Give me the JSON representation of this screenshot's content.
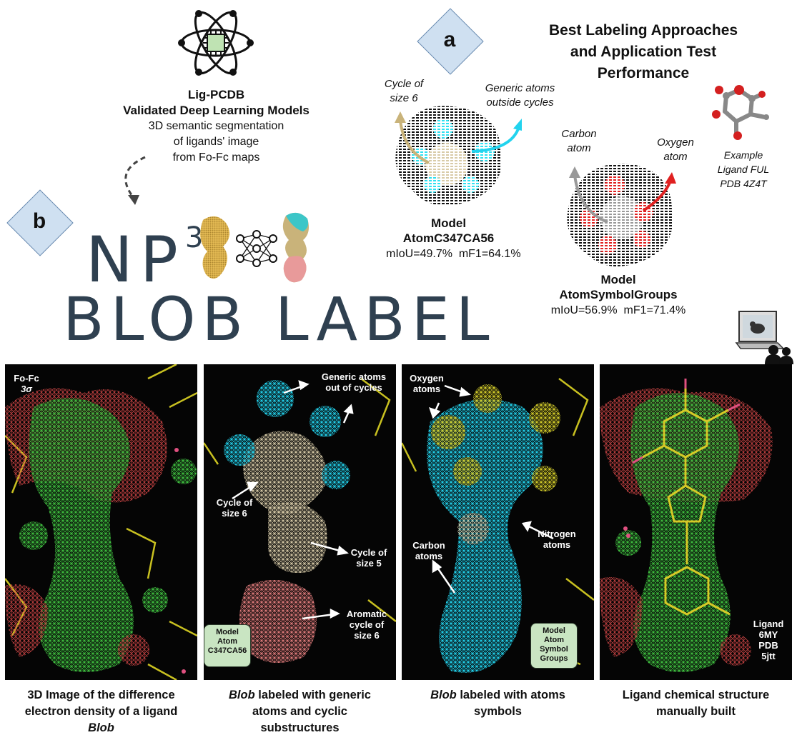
{
  "top_left": {
    "title": "Lig-PCDB",
    "subtitle": "Validated Deep Learning Models",
    "desc_line1": "3D semantic segmentation",
    "desc_line2": "of ligands' image",
    "desc_line3": "from Fo-Fc maps"
  },
  "badge_a": "a",
  "badge_b": "b",
  "logo": {
    "line1": "NP",
    "sup": "3",
    "line2": "BLOB LABEL"
  },
  "section_a": {
    "title_line1": "Best Labeling Approaches",
    "title_line2": "and Application Test",
    "title_line3": "Performance",
    "model1": {
      "label_cycle_line1": "Cycle of",
      "label_cycle_line2": "size 6",
      "label_generic_line1": "Generic atoms",
      "label_generic_line2": "outside cycles",
      "name_line1": "Model",
      "name_line2": "AtomC347CA56",
      "metrics": "mIoU=49.7%  mF1=64.1%"
    },
    "model2": {
      "label_carbon_line1": "Carbon",
      "label_carbon_line2": "atom",
      "label_oxygen_line1": "Oxygen",
      "label_oxygen_line2": "atom",
      "name_line1": "Model",
      "name_line2": "AtomSymbolGroups",
      "metrics": "mIoU=56.9%  mF1=71.4%"
    },
    "example": {
      "line1": "Example",
      "line2": "Ligand FUL",
      "line3": "PDB 4Z4T"
    }
  },
  "panels": {
    "p1": {
      "label_line1": "Fo-Fc",
      "label_line2": "3σ"
    },
    "p2": {
      "generic_line1": "Generic atoms",
      "generic_line2": "out of cycles",
      "cycle6_line1": "Cycle of",
      "cycle6_line2": "size 6",
      "cycle5_line1": "Cycle of",
      "cycle5_line2": "size 5",
      "arom_line1": "Aromatic",
      "arom_line2": "cycle of",
      "arom_line3": "size 6",
      "chip_line1": "Model",
      "chip_line2": "Atom",
      "chip_line3": "C347CA56"
    },
    "p3": {
      "oxygen_line1": "Oxygen",
      "oxygen_line2": "atoms",
      "nitrogen_line1": "Nitrogen",
      "nitrogen_line2": "atoms",
      "carbon_line1": "Carbon",
      "carbon_line2": "atoms",
      "chip_line1": "Model",
      "chip_line2": "Atom",
      "chip_line3": "Symbol",
      "chip_line4": "Groups"
    },
    "p4": {
      "line1": "Ligand",
      "line2": "6MY",
      "line3": "PDB",
      "line4": "5jtt"
    }
  },
  "captions": {
    "c1_line1": "3D Image of the difference",
    "c1_line2": "electron density of a ligand",
    "c1_line3": "Blob",
    "c2_line1_em": "Blob",
    "c2_line1_rest": " labeled with generic",
    "c2_line2": "atoms and cyclic",
    "c2_line3": "substructures",
    "c3_line1_em": "Blob",
    "c3_line1_rest": " labeled with atoms",
    "c3_line2": "symbols",
    "c4_line1": "Ligand chemical structure",
    "c4_line2": "manually built"
  },
  "colors": {
    "badge": "#cfe0f1",
    "cyan": "#22d3ee",
    "beige": "#d8cba8",
    "red": "#e23030",
    "green_mesh": "#3fbf3f",
    "yellow": "#c8c020",
    "chip": "#c9e5c2",
    "logo": "#2f4050"
  },
  "icons": [
    "atom-chip-icon",
    "neural-network-icon",
    "computer-user-icon",
    "molecule-icon"
  ]
}
